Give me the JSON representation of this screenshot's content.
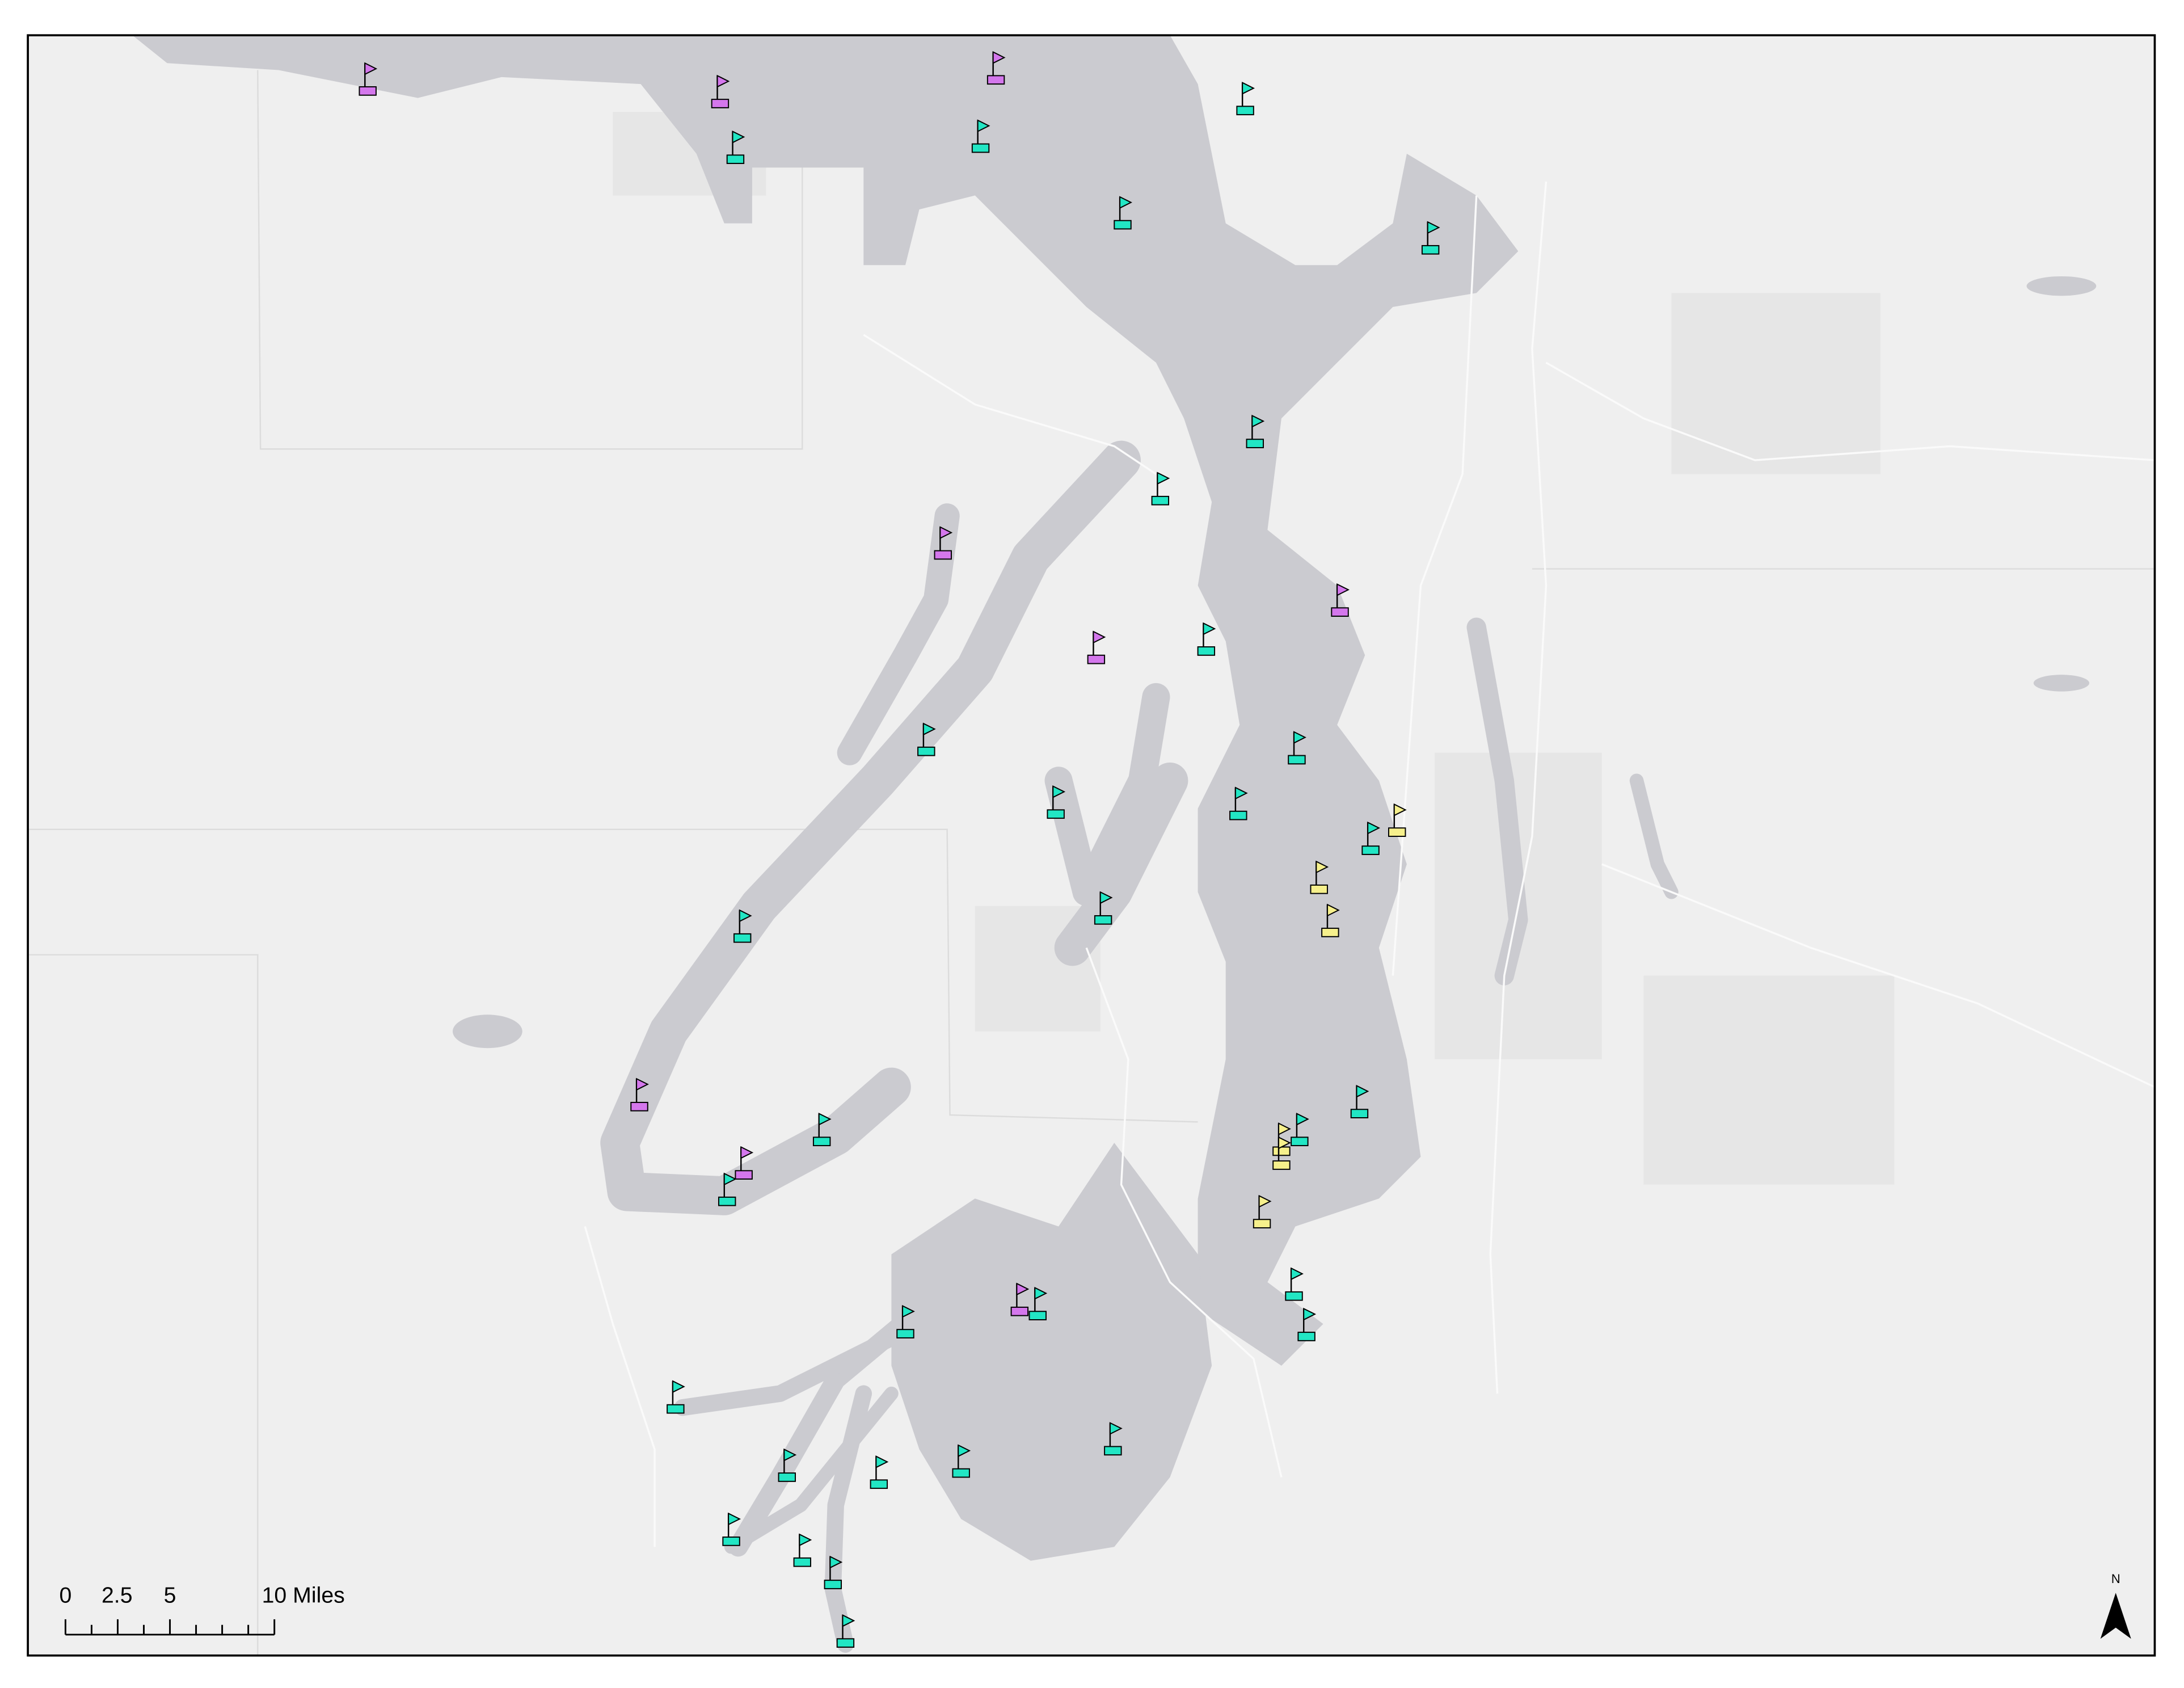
{
  "scale_bar": {
    "labels": [
      "0",
      "2.5",
      "5",
      "10 Miles"
    ]
  },
  "north_arrow": {
    "label": "N"
  }
}
